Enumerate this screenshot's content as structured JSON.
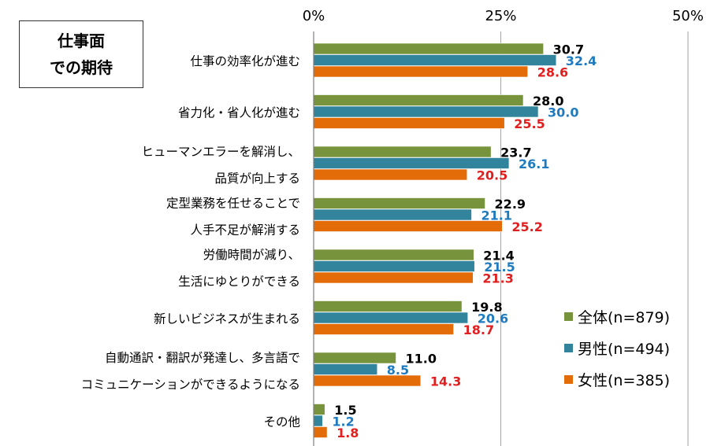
{
  "title": {
    "line1": "仕事面",
    "line2": "での期待"
  },
  "colors": {
    "all": "#77933C",
    "male": "#31849B",
    "female": "#E36C09",
    "label_all": "#000000",
    "label_male": "#1F7BBF",
    "label_female": "#E02020"
  },
  "legend": [
    {
      "name": "全体(n=879)",
      "color": "#77933C"
    },
    {
      "name": "男性(n=494)",
      "color": "#31849B"
    },
    {
      "name": "女性(n=385)",
      "color": "#E36C09"
    }
  ],
  "chart_data": {
    "type": "bar",
    "orientation": "horizontal",
    "unit": "%",
    "xlim": [
      0,
      50
    ],
    "ticks": [
      {
        "value": 0,
        "label": "0%"
      },
      {
        "value": 25,
        "label": "25%"
      },
      {
        "value": 50,
        "label": "50%"
      }
    ],
    "categories": [
      {
        "lines": [
          "仕事の効率化が進む"
        ]
      },
      {
        "lines": [
          "省力化・省人化が進む"
        ]
      },
      {
        "lines": [
          "ヒューマンエラーを解消し、",
          "品質が向上する"
        ]
      },
      {
        "lines": [
          "定型業務を任せることで",
          "人手不足が解消する"
        ]
      },
      {
        "lines": [
          "労働時間が減り、",
          "生活にゆとりができる"
        ]
      },
      {
        "lines": [
          "新しいビジネスが生まれる"
        ]
      },
      {
        "lines": [
          "自動通訳・翻訳が発達し、多言語で",
          "コミュニケーションができるようになる"
        ]
      },
      {
        "lines": [
          "その他"
        ]
      }
    ],
    "series": [
      {
        "name": "全体(n=879)",
        "values": [
          30.7,
          28.0,
          23.7,
          22.9,
          21.4,
          19.8,
          11.0,
          1.5
        ],
        "labels": [
          "30.7",
          "28.0",
          "23.7",
          "22.9",
          "21.4",
          "19.8",
          "11.0",
          "1.5"
        ]
      },
      {
        "name": "男性(n=494)",
        "values": [
          32.4,
          30.0,
          26.1,
          21.1,
          21.5,
          20.6,
          8.5,
          1.2
        ],
        "labels": [
          "32.4",
          "30.0",
          "26.1",
          "21.1",
          "21.5",
          "20.6",
          "8.5",
          "1.2"
        ]
      },
      {
        "name": "女性(n=385)",
        "values": [
          28.6,
          25.5,
          20.5,
          25.2,
          21.3,
          18.7,
          14.3,
          1.8
        ],
        "labels": [
          "28.6",
          "25.5",
          "20.5",
          "25.2",
          "21.3",
          "18.7",
          "14.3",
          "1.8"
        ]
      }
    ]
  }
}
